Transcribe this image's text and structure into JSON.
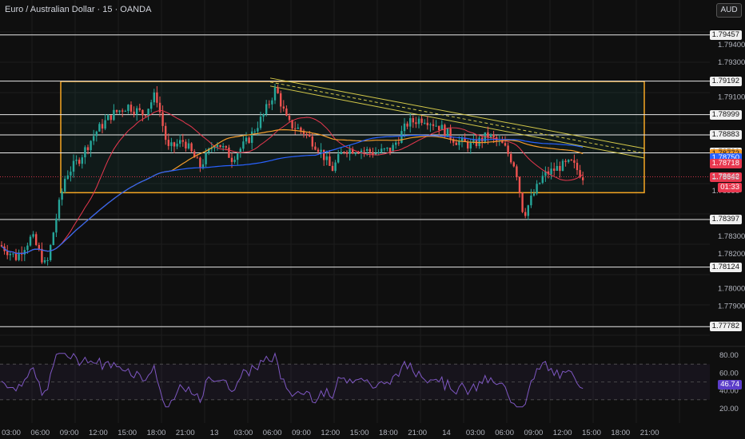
{
  "header": {
    "title": "Euro / Australian Dollar · 15 · OANDA",
    "currency_button": "AUD"
  },
  "colors": {
    "background": "#0f0f0f",
    "bull": "#26a69a",
    "bear": "#ef5350",
    "box": "#f5a623",
    "ma_orange": "#f39c2b",
    "ma_blue": "#2962ff",
    "ma_red": "#e8384f",
    "channel": "#d4c94a",
    "rsi_line": "#7e57c2"
  },
  "price_scale": {
    "min": 1.7776,
    "max": 1.7952,
    "ticks": [
      "1.79400",
      "1.79300",
      "1.79100",
      "1.78200",
      "1.78300",
      "1.78000",
      "1.77900"
    ],
    "levels": [
      {
        "label": "1.79457",
        "value": 1.79457,
        "style": "line"
      },
      {
        "label": "1.79192",
        "value": 1.79192,
        "style": "line"
      },
      {
        "label": "1.78999",
        "value": 1.78999,
        "style": "line"
      },
      {
        "label": "1.78883",
        "value": 1.78883,
        "style": "line"
      },
      {
        "label": "1.78780",
        "value": 1.7878,
        "style": "line"
      },
      {
        "label": "1.78772",
        "value": 1.78772,
        "style": "orange"
      },
      {
        "label": "1.78750",
        "value": 1.7875,
        "style": "blue"
      },
      {
        "label": "1.78718",
        "value": 1.78718,
        "style": "red"
      },
      {
        "label": "1.78642",
        "value": 1.78642,
        "style": "red"
      },
      {
        "label": "1.78636",
        "value": 1.78636,
        "style": "plain"
      },
      {
        "label": "1.78558",
        "value": 1.78558,
        "style": "plain"
      },
      {
        "label": "1.78397",
        "value": 1.78397,
        "style": "line"
      },
      {
        "label": "1.78124",
        "value": 1.78124,
        "style": "line"
      },
      {
        "label": "1.77782",
        "value": 1.77782,
        "style": "line"
      }
    ],
    "countdown": "01:33"
  },
  "time_axis": [
    "03:00",
    "06:00",
    "09:00",
    "12:00",
    "15:00",
    "18:00",
    "21:00",
    "13",
    "03:00",
    "06:00",
    "09:00",
    "12:00",
    "15:00",
    "18:00",
    "21:00",
    "14",
    "03:00",
    "06:00",
    "09:00",
    "12:00",
    "15:00",
    "18:00",
    "21:00"
  ],
  "rsi": {
    "ticks": [
      "80.00",
      "60.00",
      "40.00",
      "20.00"
    ],
    "value_label": "46.74",
    "value": 46.74,
    "upper": 70,
    "middle": 50,
    "lower": 30
  }
}
